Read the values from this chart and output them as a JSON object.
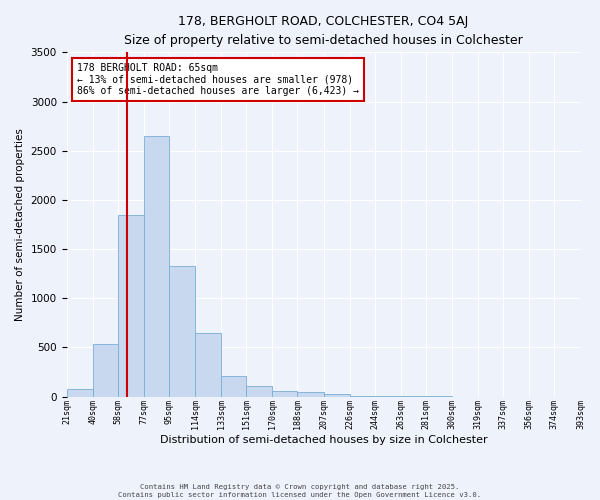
{
  "title": "178, BERGHOLT ROAD, COLCHESTER, CO4 5AJ",
  "subtitle": "Size of property relative to semi-detached houses in Colchester",
  "xlabel": "Distribution of semi-detached houses by size in Colchester",
  "ylabel": "Number of semi-detached properties",
  "bar_color": "#c8d8ee",
  "bar_edge_color": "#7aaed6",
  "background_color": "#eef2fb",
  "grid_color": "#ffffff",
  "property_line_x": 65,
  "property_line_color": "#cc0000",
  "annotation_title": "178 BERGHOLT ROAD: 65sqm",
  "annotation_line1": "← 13% of semi-detached houses are smaller (978)",
  "annotation_line2": "86% of semi-detached houses are larger (6,423) →",
  "annotation_box_color": "#cc0000",
  "bin_edges": [
    21,
    40,
    58,
    77,
    95,
    114,
    133,
    151,
    170,
    188,
    207,
    226,
    244,
    263,
    281,
    300,
    319,
    337,
    356,
    374,
    393
  ],
  "bin_counts": [
    75,
    540,
    1850,
    2650,
    1330,
    650,
    215,
    110,
    60,
    45,
    25,
    10,
    5,
    3,
    2,
    1,
    1,
    1,
    0,
    0
  ],
  "tick_labels": [
    "21sqm",
    "40sqm",
    "58sqm",
    "77sqm",
    "95sqm",
    "114sqm",
    "133sqm",
    "151sqm",
    "170sqm",
    "188sqm",
    "207sqm",
    "226sqm",
    "244sqm",
    "263sqm",
    "281sqm",
    "300sqm",
    "319sqm",
    "337sqm",
    "356sqm",
    "374sqm",
    "393sqm"
  ],
  "ylim": [
    0,
    3500
  ],
  "yticks": [
    0,
    500,
    1000,
    1500,
    2000,
    2500,
    3000,
    3500
  ],
  "footer_line1": "Contains HM Land Registry data © Crown copyright and database right 2025.",
  "footer_line2": "Contains public sector information licensed under the Open Government Licence v3.0."
}
